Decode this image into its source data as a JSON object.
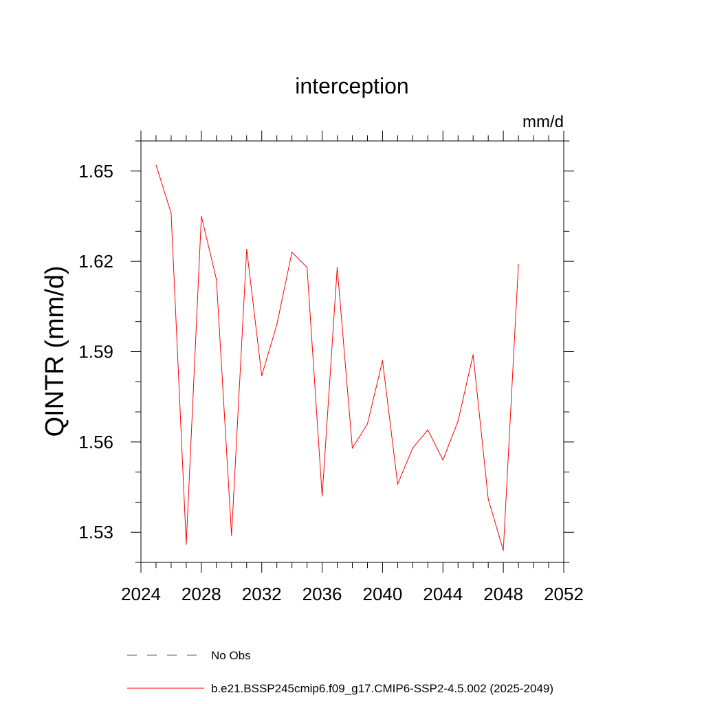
{
  "chart_data": {
    "type": "line",
    "title": "interception",
    "units": "mm/d",
    "ylabel": "QINTR  (mm/d)",
    "xlabel": "",
    "xlim": [
      2024,
      2052
    ],
    "ylim": [
      1.52,
      1.66
    ],
    "x_ticks": [
      "2024",
      "2028",
      "2032",
      "2036",
      "2040",
      "2044",
      "2048",
      "2052"
    ],
    "y_ticks": [
      "1.53",
      "1.56",
      "1.59",
      "1.62",
      "1.65"
    ],
    "series": [
      {
        "name": "b.e21.BSSP245cmip6.f09_g17.CMIP6-SSP2-4.5.002 (2025-2049)",
        "color": "#ff0000",
        "style": "solid",
        "x": [
          2025,
          2026,
          2027,
          2028,
          2029,
          2030,
          2031,
          2032,
          2033,
          2034,
          2035,
          2036,
          2037,
          2038,
          2039,
          2040,
          2041,
          2042,
          2043,
          2044,
          2045,
          2046,
          2047,
          2048,
          2049
        ],
        "values": [
          1.652,
          1.636,
          1.526,
          1.635,
          1.614,
          1.529,
          1.624,
          1.582,
          1.599,
          1.623,
          1.618,
          1.542,
          1.618,
          1.558,
          1.566,
          1.587,
          1.546,
          1.558,
          1.564,
          1.554,
          1.567,
          1.589,
          1.541,
          1.524,
          1.619
        ]
      }
    ],
    "legend": [
      {
        "label": "No Obs",
        "color": "#5555aa",
        "style": "dashed"
      },
      {
        "label": "b.e21.BSSP245cmip6.f09_g17.CMIP6-SSP2-4.5.002 (2025-2049)",
        "color": "#ff0000",
        "style": "solid"
      }
    ],
    "legend_placement": "bottom"
  }
}
